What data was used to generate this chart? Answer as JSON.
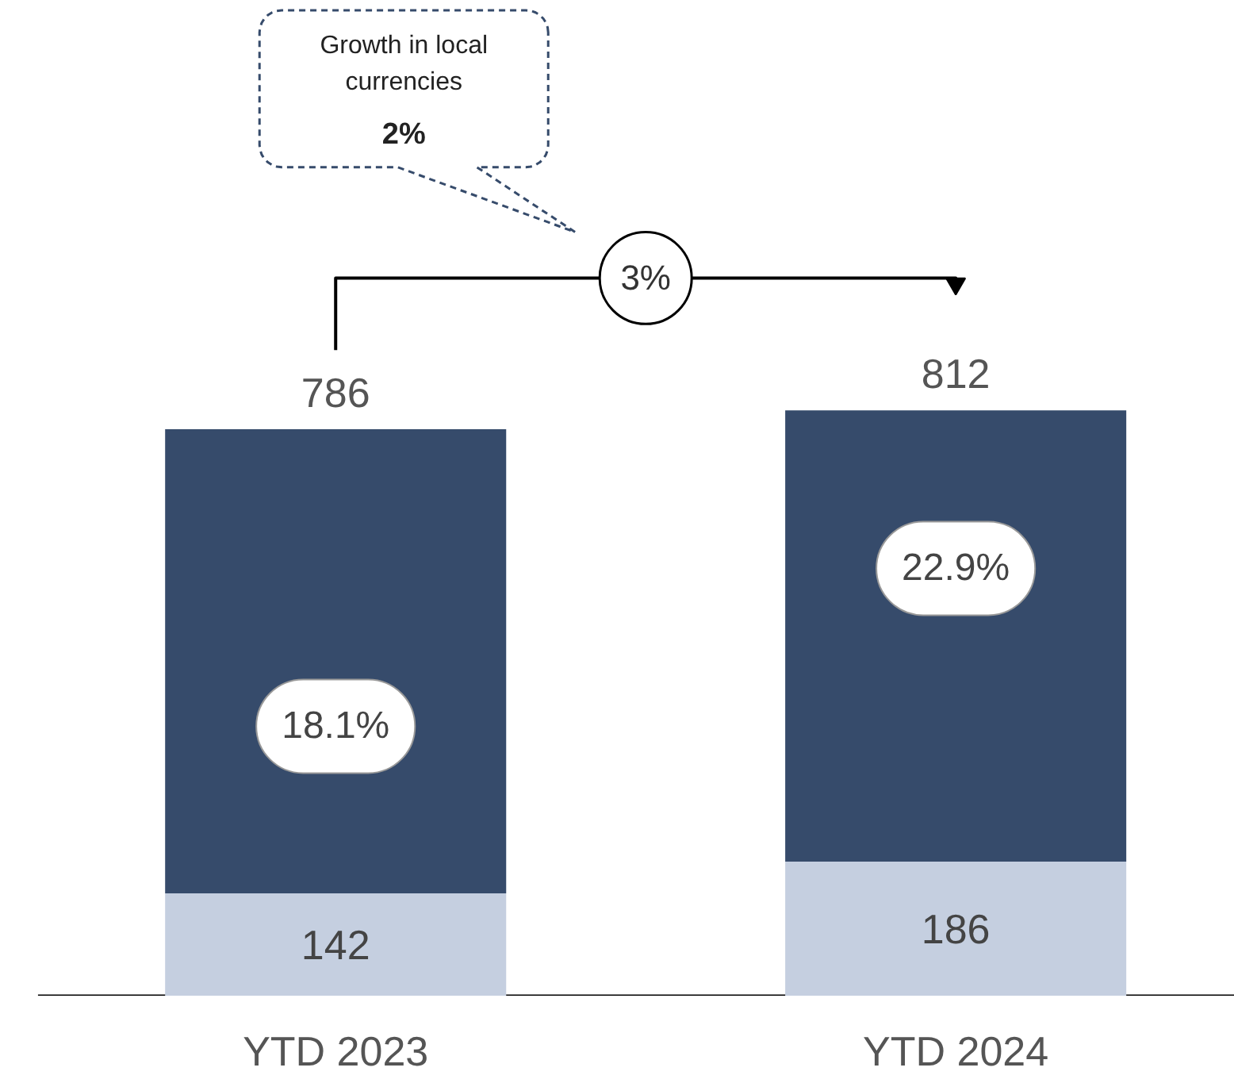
{
  "chart_data": {
    "type": "bar",
    "stacked": true,
    "categories": [
      "YTD 2023",
      "YTD 2024"
    ],
    "series": [
      {
        "color": "#c5cfe0",
        "values": [
          142,
          186
        ],
        "value_labels": [
          "142",
          "186"
        ]
      },
      {
        "color": "#364b6b",
        "values": [
          644,
          626
        ]
      }
    ],
    "totals": [
      "786",
      "812"
    ],
    "grid": false,
    "annotations": [
      "Growth in local currencies",
      "2%",
      "3%",
      "18.1%",
      "22.9%"
    ]
  }
}
